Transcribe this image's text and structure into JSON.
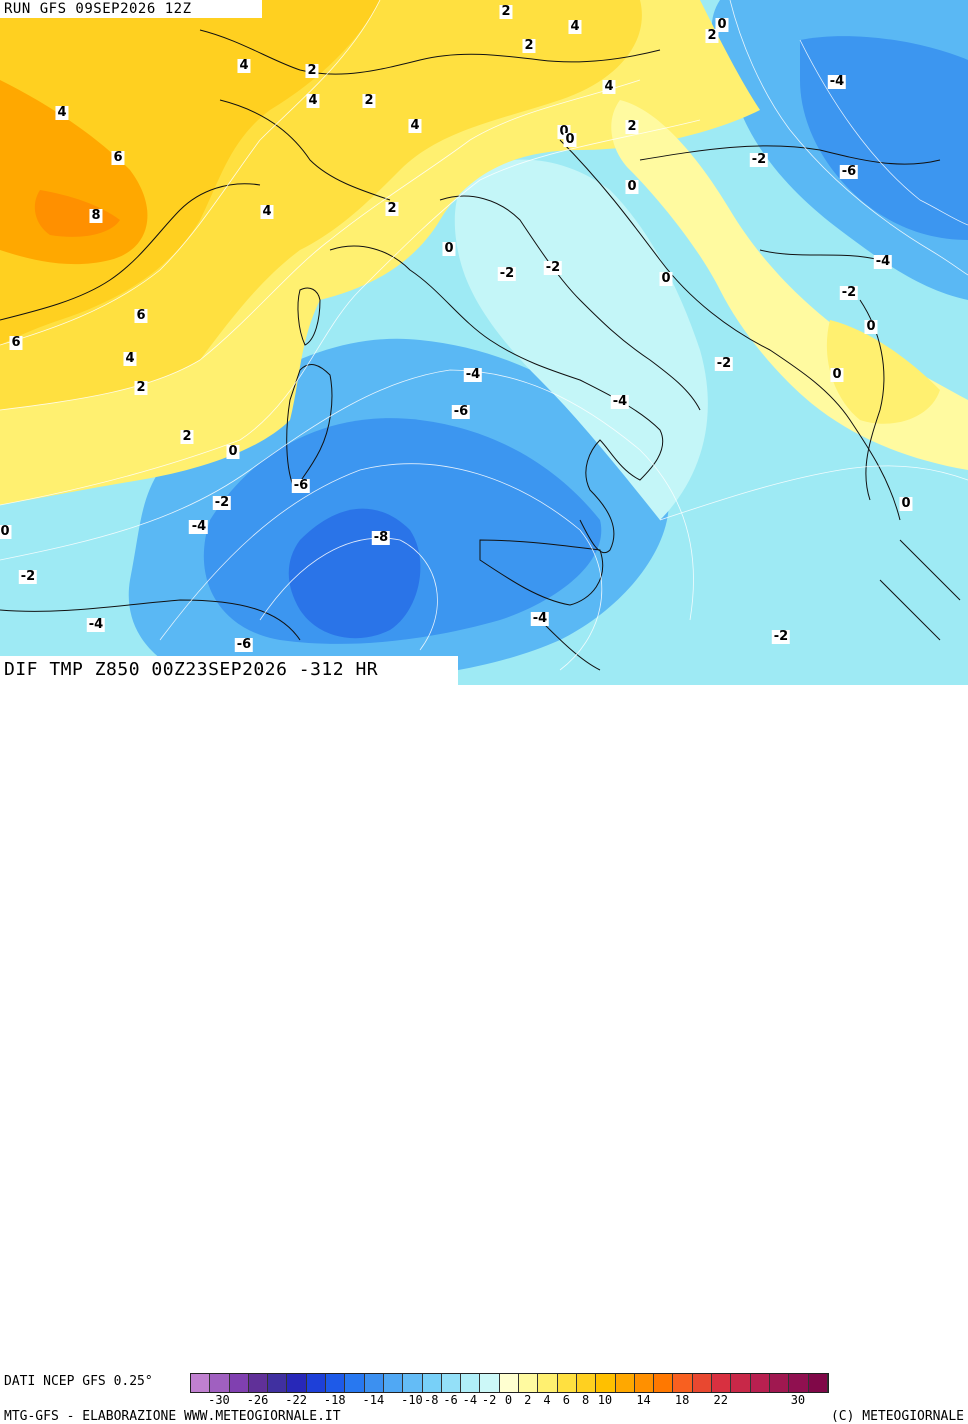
{
  "header": {
    "run_title": "RUN GFS 09SEP2026 12Z"
  },
  "field": {
    "title": "DIF TMP Z850 00Z23SEP2026 -312 HR"
  },
  "footer": {
    "source": "DATI NCEP GFS 0.25°",
    "credit_left": "MTG-GFS - ELABORAZIONE WWW.METEOGIORNALE.IT",
    "credit_right": "(C) METEOGIORNALE"
  },
  "colorbar": {
    "colors": [
      "#c080d0",
      "#a060c0",
      "#8040b0",
      "#603098",
      "#4030a0",
      "#2828b8",
      "#1e40d8",
      "#1e5ae8",
      "#2878f0",
      "#3c90f0",
      "#50a8f4",
      "#64bcf6",
      "#78d0f8",
      "#94e0f8",
      "#b0eef8",
      "#ccf8f8",
      "#ffffd0",
      "#fffaa0",
      "#fff070",
      "#ffe040",
      "#ffd020",
      "#ffc000",
      "#ffa800",
      "#ff9000",
      "#ff7800",
      "#f86020",
      "#e84830",
      "#d83040",
      "#c82848",
      "#b82050",
      "#a01850",
      "#901050",
      "#800848"
    ],
    "ticks": [
      "-30",
      "-26",
      "-22",
      "-18",
      "-14",
      "-10",
      "-8",
      "-6",
      "-4",
      "-2",
      "0",
      "2",
      "4",
      "6",
      "8",
      "10",
      "14",
      "18",
      "22",
      "30"
    ]
  },
  "contour_labels": [
    "2",
    "4",
    "2",
    "0",
    "4",
    "2",
    "4",
    "2",
    "4",
    "4",
    "4",
    "0",
    "2",
    "2",
    "-4",
    "-2",
    "-6",
    "6",
    "0",
    "8",
    "4",
    "2",
    "0",
    "-2",
    "-2",
    "-4",
    "0",
    "-2",
    "6",
    "0",
    "6",
    "4",
    "-4",
    "-2",
    "0",
    "2",
    "-4",
    "-6",
    "-4",
    "0",
    "2",
    "0",
    "-6",
    "-2",
    "0",
    "-4",
    "-8",
    "-2",
    "-4",
    "-2",
    "-4",
    "-6",
    "0"
  ],
  "map_features": [
    "sea-temperature-field",
    "country-borders",
    "coastlines",
    "isotherm-contours"
  ]
}
